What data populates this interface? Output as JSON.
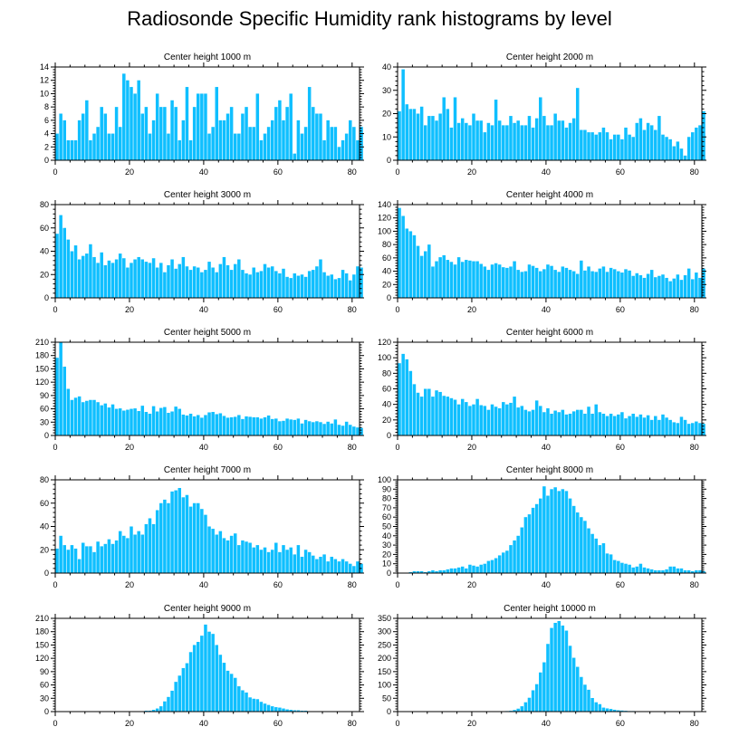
{
  "title": "Radiosonde Specific Humidity rank histograms by level",
  "bar_color": "#0fbfff",
  "chart_data": [
    {
      "type": "bar",
      "title": "Center height 1000 m",
      "xlim": [
        0,
        82
      ],
      "ylim": [
        0,
        14
      ],
      "yticks": [
        0,
        2,
        4,
        6,
        8,
        10,
        12,
        14
      ],
      "xticks": [
        0,
        20,
        40,
        60,
        80
      ],
      "values": [
        4,
        7,
        6,
        3,
        3,
        3,
        6,
        7,
        9,
        3,
        4,
        5,
        8,
        7,
        4,
        4,
        8,
        5,
        13,
        12,
        11,
        10,
        12,
        7,
        8,
        4,
        6,
        10,
        8,
        8,
        4,
        9,
        8,
        3,
        6,
        11,
        3,
        8,
        10,
        10,
        10,
        4,
        5,
        11,
        6,
        6,
        7,
        8,
        4,
        4,
        7,
        8,
        5,
        5,
        10,
        3,
        4,
        5,
        6,
        8,
        9,
        6,
        8,
        10,
        1,
        6,
        4,
        5,
        11,
        8,
        7,
        7,
        3,
        6,
        5,
        5,
        2,
        3,
        4,
        6,
        5,
        3,
        5
      ]
    },
    {
      "type": "bar",
      "title": "Center height 2000 m",
      "xlim": [
        0,
        82
      ],
      "ylim": [
        0,
        40
      ],
      "yticks": [
        0,
        10,
        20,
        30,
        40
      ],
      "xticks": [
        0,
        20,
        40,
        60,
        80
      ],
      "values": [
        21,
        39,
        24,
        22,
        22,
        20,
        23,
        15,
        19,
        19,
        17,
        20,
        27,
        22,
        14,
        27,
        16,
        18,
        16,
        15,
        20,
        17,
        17,
        12,
        16,
        15,
        26,
        17,
        15,
        15,
        19,
        16,
        17,
        15,
        15,
        19,
        14,
        18,
        27,
        19,
        15,
        15,
        20,
        17,
        17,
        14,
        16,
        18,
        31,
        13,
        13,
        12,
        12,
        11,
        12,
        14,
        12,
        9,
        11,
        11,
        9,
        14,
        11,
        10,
        16,
        18,
        13,
        16,
        15,
        13,
        19,
        11,
        10,
        9,
        6,
        8,
        5,
        2,
        10,
        12,
        14,
        15,
        21
      ]
    },
    {
      "type": "bar",
      "title": "Center height 3000 m",
      "xlim": [
        0,
        82
      ],
      "ylim": [
        0,
        80
      ],
      "yticks": [
        0,
        20,
        40,
        60,
        80
      ],
      "xticks": [
        0,
        20,
        40,
        60,
        80
      ],
      "values": [
        55,
        71,
        60,
        50,
        40,
        45,
        33,
        36,
        38,
        46,
        35,
        30,
        39,
        28,
        32,
        30,
        33,
        38,
        34,
        26,
        30,
        33,
        35,
        33,
        31,
        30,
        34,
        26,
        30,
        22,
        28,
        33,
        25,
        29,
        35,
        27,
        24,
        27,
        26,
        22,
        24,
        31,
        26,
        22,
        29,
        35,
        28,
        24,
        29,
        33,
        24,
        21,
        20,
        26,
        22,
        23,
        29,
        26,
        27,
        23,
        21,
        25,
        18,
        17,
        21,
        19,
        20,
        18,
        23,
        24,
        27,
        33,
        22,
        19,
        20,
        16,
        17,
        24,
        21,
        15,
        20,
        27,
        26
      ]
    },
    {
      "type": "bar",
      "title": "Center height 4000 m",
      "xlim": [
        0,
        82
      ],
      "ylim": [
        0,
        140
      ],
      "yticks": [
        0,
        20,
        40,
        60,
        80,
        100,
        120,
        140
      ],
      "xticks": [
        0,
        20,
        40,
        60,
        80
      ],
      "values": [
        135,
        123,
        104,
        100,
        94,
        78,
        63,
        70,
        80,
        47,
        55,
        61,
        64,
        57,
        54,
        50,
        61,
        54,
        57,
        56,
        55,
        55,
        51,
        47,
        42,
        50,
        52,
        50,
        46,
        45,
        47,
        55,
        42,
        39,
        40,
        50,
        48,
        45,
        40,
        43,
        50,
        48,
        42,
        39,
        47,
        45,
        42,
        40,
        36,
        56,
        41,
        47,
        40,
        39,
        44,
        47,
        39,
        45,
        43,
        40,
        38,
        43,
        41,
        33,
        37,
        34,
        30,
        36,
        42,
        31,
        33,
        35,
        30,
        25,
        29,
        35,
        27,
        34,
        44,
        28,
        38,
        30,
        44
      ]
    },
    {
      "type": "bar",
      "title": "Center height 5000 m",
      "xlim": [
        0,
        82
      ],
      "ylim": [
        0,
        210
      ],
      "yticks": [
        0,
        30,
        60,
        90,
        120,
        150,
        180,
        210
      ],
      "xticks": [
        0,
        20,
        40,
        60,
        80
      ],
      "values": [
        175,
        210,
        155,
        105,
        80,
        85,
        88,
        75,
        78,
        80,
        80,
        75,
        68,
        72,
        63,
        70,
        60,
        61,
        56,
        58,
        60,
        61,
        55,
        67,
        53,
        49,
        66,
        54,
        62,
        64,
        51,
        54,
        65,
        60,
        47,
        45,
        49,
        43,
        46,
        40,
        46,
        52,
        53,
        48,
        50,
        44,
        40,
        41,
        42,
        46,
        37,
        43,
        42,
        41,
        41,
        38,
        41,
        45,
        37,
        38,
        32,
        33,
        38,
        36,
        35,
        38,
        27,
        35,
        32,
        30,
        32,
        30,
        26,
        31,
        27,
        36,
        24,
        22,
        31,
        24,
        20,
        18,
        17
      ]
    },
    {
      "type": "bar",
      "title": "Center height 6000 m",
      "xlim": [
        0,
        82
      ],
      "ylim": [
        0,
        120
      ],
      "yticks": [
        0,
        20,
        40,
        60,
        80,
        100,
        120
      ],
      "xticks": [
        0,
        20,
        40,
        60,
        80
      ],
      "values": [
        93,
        105,
        98,
        83,
        66,
        55,
        50,
        60,
        60,
        50,
        58,
        56,
        51,
        50,
        48,
        46,
        40,
        47,
        43,
        38,
        40,
        47,
        39,
        38,
        33,
        40,
        37,
        35,
        43,
        40,
        42,
        50,
        36,
        38,
        33,
        31,
        33,
        45,
        38,
        30,
        35,
        28,
        32,
        30,
        33,
        27,
        28,
        31,
        33,
        33,
        28,
        37,
        28,
        40,
        30,
        28,
        25,
        28,
        25,
        27,
        30,
        22,
        25,
        28,
        24,
        27,
        23,
        26,
        20,
        25,
        20,
        27,
        23,
        20,
        17,
        16,
        24,
        20,
        15,
        16,
        18,
        16,
        15
      ]
    },
    {
      "type": "bar",
      "title": "Center height 7000 m",
      "xlim": [
        0,
        82
      ],
      "ylim": [
        0,
        80
      ],
      "yticks": [
        0,
        20,
        40,
        60,
        80
      ],
      "xticks": [
        0,
        20,
        40,
        60,
        80
      ],
      "values": [
        21,
        32,
        24,
        20,
        24,
        21,
        12,
        26,
        23,
        23,
        18,
        27,
        23,
        25,
        29,
        25,
        28,
        36,
        32,
        30,
        40,
        33,
        36,
        33,
        42,
        47,
        42,
        54,
        60,
        63,
        60,
        70,
        71,
        73,
        65,
        67,
        57,
        60,
        60,
        55,
        50,
        40,
        38,
        33,
        36,
        30,
        28,
        32,
        34,
        24,
        28,
        27,
        26,
        22,
        24,
        20,
        22,
        18,
        20,
        26,
        18,
        24,
        20,
        22,
        16,
        24,
        14,
        20,
        18,
        15,
        12,
        14,
        16,
        10,
        14,
        12,
        10,
        12,
        10,
        8,
        6,
        10,
        8
      ]
    },
    {
      "type": "bar",
      "title": "Center height 8000 m",
      "xlim": [
        0,
        82
      ],
      "ylim": [
        0,
        100
      ],
      "yticks": [
        0,
        10,
        20,
        30,
        40,
        50,
        60,
        70,
        80,
        90,
        100
      ],
      "xticks": [
        0,
        20,
        40,
        60,
        80
      ],
      "values": [
        0,
        0,
        0,
        1,
        2,
        2,
        2,
        1,
        2,
        3,
        2,
        3,
        3,
        4,
        5,
        5,
        6,
        7,
        5,
        9,
        8,
        7,
        9,
        10,
        13,
        14,
        16,
        19,
        22,
        24,
        30,
        35,
        40,
        49,
        60,
        63,
        70,
        74,
        80,
        93,
        83,
        90,
        92,
        88,
        90,
        88,
        80,
        72,
        65,
        60,
        56,
        48,
        42,
        37,
        30,
        32,
        21,
        20,
        14,
        13,
        11,
        10,
        9,
        6,
        7,
        10,
        6,
        5,
        4,
        3,
        3,
        3,
        4,
        7,
        7,
        5,
        5,
        3,
        3,
        2,
        3,
        3,
        2
      ]
    },
    {
      "type": "bar",
      "title": "Center height 9000 m",
      "xlim": [
        0,
        82
      ],
      "ylim": [
        0,
        210
      ],
      "yticks": [
        0,
        30,
        60,
        90,
        120,
        150,
        180,
        210
      ],
      "xticks": [
        0,
        20,
        40,
        60,
        80
      ],
      "values": [
        0,
        0,
        0,
        0,
        0,
        0,
        0,
        0,
        0,
        0,
        0,
        0,
        0,
        0,
        0,
        0,
        0,
        0,
        0,
        0,
        0,
        0,
        0,
        1,
        2,
        2,
        4,
        7,
        12,
        23,
        33,
        47,
        67,
        81,
        98,
        109,
        134,
        150,
        157,
        171,
        196,
        180,
        175,
        150,
        128,
        110,
        92,
        85,
        76,
        57,
        48,
        43,
        32,
        29,
        28,
        22,
        18,
        15,
        12,
        10,
        9,
        7,
        5,
        4,
        3,
        3,
        2,
        2,
        1,
        1,
        1,
        1,
        0,
        0,
        0,
        0,
        0,
        0,
        0,
        0,
        0,
        0,
        0
      ]
    },
    {
      "type": "bar",
      "title": "Center height 10000 m",
      "xlim": [
        0,
        82
      ],
      "ylim": [
        0,
        350
      ],
      "yticks": [
        0,
        50,
        100,
        150,
        200,
        250,
        300,
        350
      ],
      "xticks": [
        0,
        20,
        40,
        60,
        80
      ],
      "values": [
        0,
        0,
        0,
        0,
        0,
        0,
        0,
        0,
        0,
        0,
        0,
        0,
        0,
        0,
        0,
        0,
        0,
        0,
        0,
        0,
        0,
        0,
        0,
        0,
        0,
        0,
        0,
        0,
        1,
        2,
        3,
        6,
        11,
        20,
        35,
        52,
        80,
        103,
        147,
        185,
        254,
        314,
        333,
        340,
        323,
        304,
        247,
        202,
        168,
        130,
        101,
        82,
        51,
        35,
        28,
        15,
        12,
        10,
        7,
        5,
        4,
        3,
        2,
        2,
        1,
        1,
        1,
        1,
        0,
        0,
        0,
        0,
        0,
        0,
        0,
        0,
        0,
        0,
        0,
        0,
        0,
        0,
        0
      ]
    }
  ]
}
